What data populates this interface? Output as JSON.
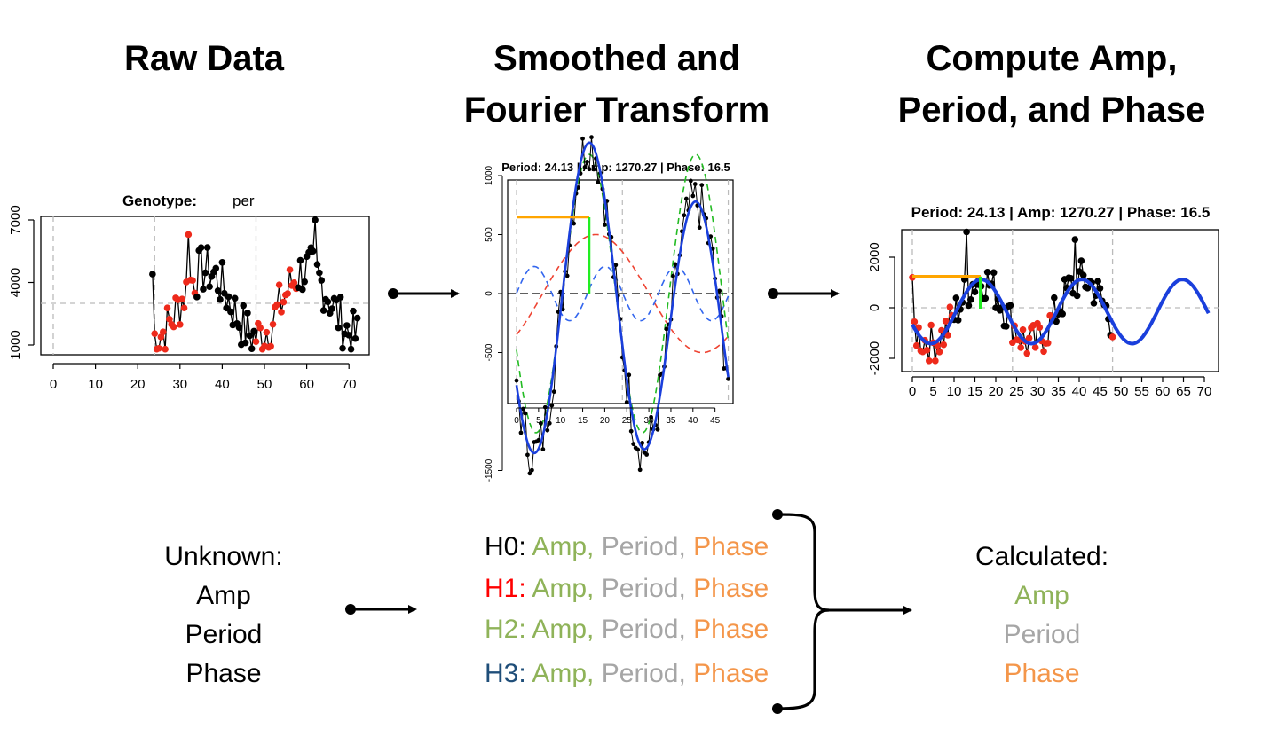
{
  "headings": {
    "raw": "Raw Data",
    "smoothed": "Smoothed and\nFourier Transform",
    "compute": "Compute Amp,\nPeriod, and Phase"
  },
  "plot1": {
    "title_bold": "Genotype:",
    "title_rest": "per",
    "x_ticks": [
      "0",
      "10",
      "20",
      "30",
      "40",
      "50",
      "60",
      "70"
    ],
    "y_ticks": [
      "1000",
      "4000",
      "7000"
    ]
  },
  "plot2": {
    "title": "Period: 24.13 | Amp: 1270.27 | Phase: 16.5",
    "x_ticks": [
      "0",
      "5",
      "10",
      "15",
      "20",
      "25",
      "30",
      "35",
      "40",
      "45"
    ],
    "y_ticks": [
      "-1500",
      "-500",
      "0",
      "500",
      "1000"
    ]
  },
  "plot3": {
    "title": "Period: 24.13 | Amp: 1270.27 | Phase: 16.5",
    "x_ticks": [
      "0",
      "5",
      "10",
      "15",
      "20",
      "25",
      "30",
      "35",
      "40",
      "45",
      "50",
      "55",
      "60",
      "65",
      "70"
    ],
    "y_ticks": [
      "-2000",
      "0",
      "2000"
    ]
  },
  "unknown": {
    "title": "Unknown:",
    "items": [
      "Amp",
      "Period",
      "Phase"
    ]
  },
  "harmonics": [
    {
      "label": "H0:",
      "label_color": "#000000"
    },
    {
      "label": "H1:",
      "label_color": "#ff0000"
    },
    {
      "label": "H2:",
      "label_color": "#8fb359"
    },
    {
      "label": "H3:",
      "label_color": "#1f4e79"
    }
  ],
  "harmonic_terms": {
    "amp": "Amp,",
    "period": "Period,",
    "phase": "Phase"
  },
  "calculated": {
    "title": "Calculated:",
    "items": [
      "Amp",
      "Period",
      "Phase"
    ]
  },
  "colors": {
    "amp": "#8fb359",
    "period": "#a6a6a6",
    "phase": "#f4964a",
    "fit_blue": "#1a3fdc",
    "red_points": "#ee2a1b",
    "green_dash": "#22bb22",
    "red_dash": "#ee4433",
    "blue_dash": "#3366ee",
    "orange_line": "#ffa500",
    "green_line": "#22ee22"
  }
}
